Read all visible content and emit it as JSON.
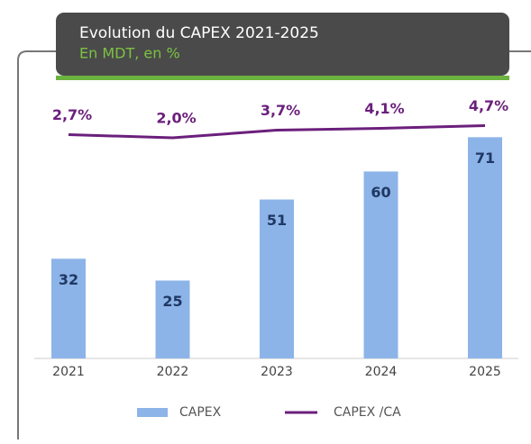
{
  "chart_data": {
    "type": "bar-line",
    "title": "Evolution du CAPEX 2021-2025",
    "subtitle": "En MDT, en %",
    "categories": [
      "2021",
      "2022",
      "2023",
      "2024",
      "2025"
    ],
    "series": [
      {
        "name": "CAPEX",
        "type": "bar",
        "color": "#8db4e8",
        "values": [
          32,
          25,
          51,
          60,
          71
        ]
      },
      {
        "name": "CAPEX /CA",
        "type": "line",
        "axis": "y2",
        "color": "#6b1f7c",
        "values": [
          2.7,
          2.0,
          3.7,
          4.1,
          4.7
        ],
        "value_labels": [
          "2,7%",
          "2,0%",
          "3,7%",
          "4,1%",
          "4,7%"
        ]
      }
    ]
  }
}
